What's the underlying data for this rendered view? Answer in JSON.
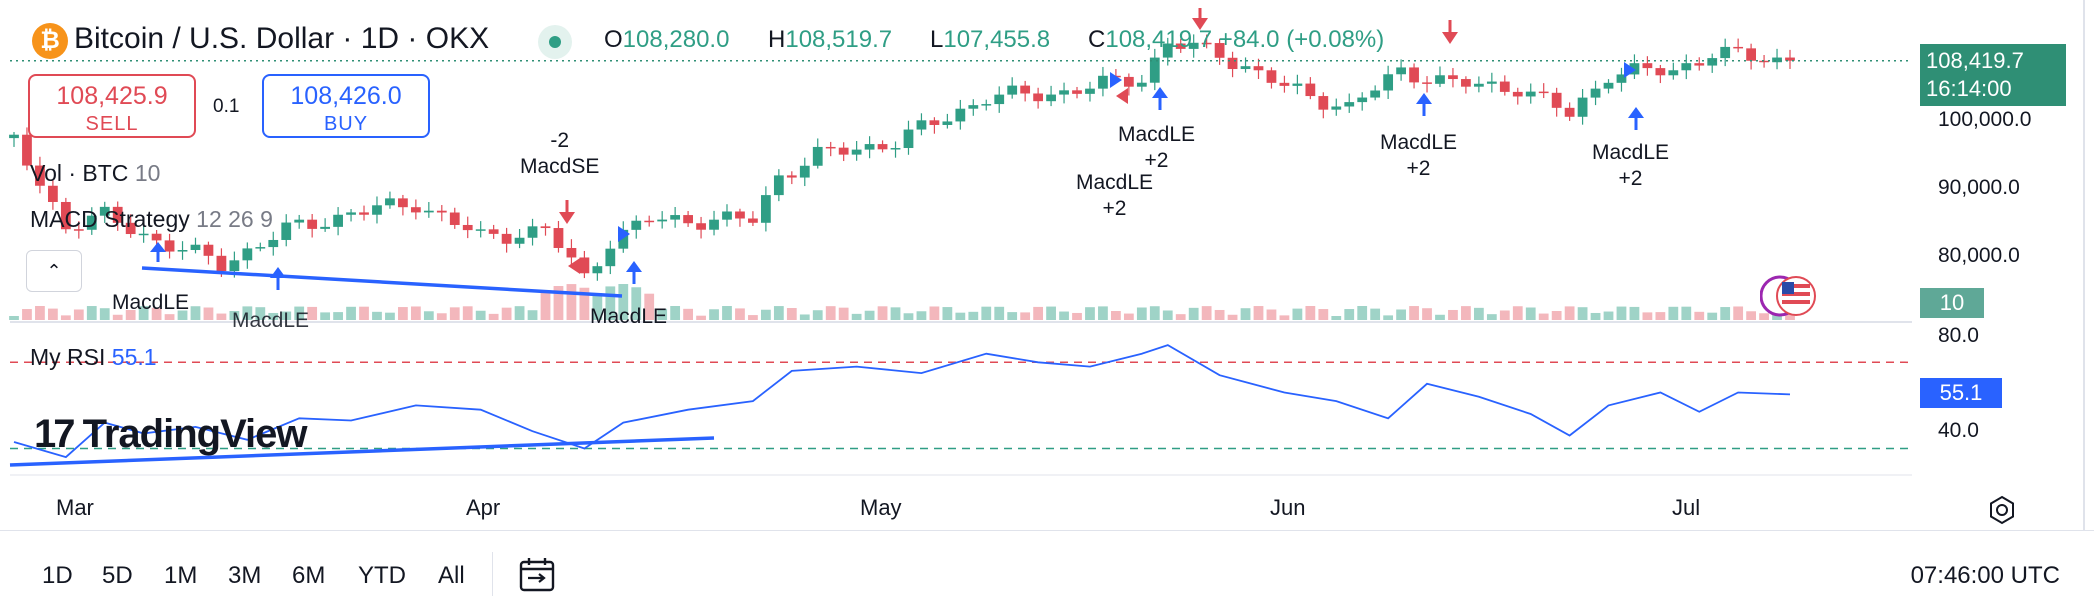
{
  "header": {
    "title": "Bitcoin / U.S. Dollar · 1D · OKX",
    "ohlc": [
      {
        "key": "O",
        "value": "108,280.0"
      },
      {
        "key": "H",
        "value": "108,519.7"
      },
      {
        "key": "L",
        "value": "107,455.8"
      },
      {
        "key": "C",
        "value": "108,419.7"
      }
    ],
    "change": "+84.0 (+0.08%)"
  },
  "trade": {
    "sell_price": "108,425.9",
    "sell_label": "SELL",
    "spread": "0.1",
    "buy_price": "108,426.0",
    "buy_label": "BUY"
  },
  "indicators": {
    "vol_name": "Vol · BTC",
    "vol_value": "10",
    "macd_name": "MACD Strategy",
    "macd_params": "12 26 9",
    "rsi_name": "My RSI",
    "rsi_value": "55.1"
  },
  "price_axis": {
    "ticks": [
      "100,000.0",
      "90,000.0",
      "80,000.0"
    ],
    "current_price": "108,419.7",
    "countdown": "16:14:00",
    "volume_tag": "10",
    "rsi_ticks": [
      "80.0",
      "40.0"
    ],
    "rsi_tag": "55.1"
  },
  "time_axis": {
    "months": [
      "Mar",
      "Apr",
      "May",
      "Jun",
      "Jul"
    ]
  },
  "signals": [
    {
      "text": "MacdLE"
    },
    {
      "text": "MacdLE"
    },
    {
      "text": "MacdLE"
    },
    {
      "text": "-2\nMacdSE"
    },
    {
      "text": "MacdLE\n+2"
    },
    {
      "text": "MacdLE\n+2"
    },
    {
      "text": "MacdLE\n+2"
    },
    {
      "text": "MacdLE\n+2"
    }
  ],
  "watermark": "TradingView",
  "toolbar": {
    "timeframes": [
      "1D",
      "5D",
      "1M",
      "3M",
      "6M",
      "YTD",
      "All"
    ],
    "clock": "07:46:00 UTC"
  },
  "icons": {
    "coin": "bitcoin-icon",
    "collapse": "chevron-up-icon",
    "compare": "calendar-range-icon",
    "settings": "settings-hex-icon",
    "flag": "us-flag-icon"
  },
  "colors": {
    "up": "#2f9e85",
    "down": "#e04a55",
    "accent": "#2962ff",
    "rsi_upper": "#e04a55",
    "rsi_lower": "#2f9e85"
  },
  "chart_data": [
    {
      "type": "candlestick",
      "title": "Bitcoin / U.S. Dollar · 1D · OKX",
      "x_range": [
        "2025-02-22",
        "2025-07-09"
      ],
      "ylim": [
        72000,
        112000
      ],
      "y_ticks": [
        80000,
        90000,
        100000
      ],
      "last": {
        "o": 108280.0,
        "h": 108519.7,
        "l": 107455.8,
        "c": 108419.7
      },
      "anchors": [
        {
          "date": "2025-02-22",
          "close": 96500
        },
        {
          "date": "2025-02-26",
          "close": 84200
        },
        {
          "date": "2025-03-01",
          "close": 85500
        },
        {
          "date": "2025-03-05",
          "close": 82000
        },
        {
          "date": "2025-03-10",
          "close": 78500
        },
        {
          "date": "2025-03-15",
          "close": 83500
        },
        {
          "date": "2025-03-20",
          "close": 86000
        },
        {
          "date": "2025-03-25",
          "close": 87500
        },
        {
          "date": "2025-03-30",
          "close": 82500
        },
        {
          "date": "2025-04-04",
          "close": 83500
        },
        {
          "date": "2025-04-07",
          "close": 76500
        },
        {
          "date": "2025-04-09",
          "close": 82000
        },
        {
          "date": "2025-04-12",
          "close": 85000
        },
        {
          "date": "2025-04-20",
          "close": 85000
        },
        {
          "date": "2025-04-22",
          "close": 91500
        },
        {
          "date": "2025-04-25",
          "close": 94500
        },
        {
          "date": "2025-05-01",
          "close": 96500
        },
        {
          "date": "2025-05-08",
          "close": 103000
        },
        {
          "date": "2025-05-14",
          "close": 103800
        },
        {
          "date": "2025-05-20",
          "close": 106000
        },
        {
          "date": "2025-05-22",
          "close": 111000
        },
        {
          "date": "2025-05-26",
          "close": 109500
        },
        {
          "date": "2025-05-31",
          "close": 104500
        },
        {
          "date": "2025-06-05",
          "close": 101500
        },
        {
          "date": "2025-06-09",
          "close": 107000
        },
        {
          "date": "2025-06-13",
          "close": 105000
        },
        {
          "date": "2025-06-18",
          "close": 104500
        },
        {
          "date": "2025-06-22",
          "close": 100500
        },
        {
          "date": "2025-06-25",
          "close": 106500
        },
        {
          "date": "2025-06-30",
          "close": 107000
        },
        {
          "date": "2025-07-03",
          "close": 109500
        },
        {
          "date": "2025-07-09",
          "close": 108420
        }
      ],
      "volume_label": "Vol · BTC",
      "volume_last": 10
    },
    {
      "type": "line",
      "title": "My RSI",
      "ylim": [
        20,
        90
      ],
      "y_ticks": [
        40,
        80
      ],
      "bands": [
        70,
        30
      ],
      "last": 55.1,
      "series": [
        {
          "name": "My RSI",
          "x": [
            "2025-02-22",
            "2025-02-26",
            "2025-03-01",
            "2025-03-04",
            "2025-03-08",
            "2025-03-12",
            "2025-03-16",
            "2025-03-20",
            "2025-03-25",
            "2025-03-30",
            "2025-04-03",
            "2025-04-07",
            "2025-04-10",
            "2025-04-15",
            "2025-04-20",
            "2025-04-23",
            "2025-04-28",
            "2025-05-03",
            "2025-05-08",
            "2025-05-12",
            "2025-05-16",
            "2025-05-20",
            "2025-05-22",
            "2025-05-26",
            "2025-05-31",
            "2025-06-04",
            "2025-06-08",
            "2025-06-11",
            "2025-06-15",
            "2025-06-19",
            "2025-06-22",
            "2025-06-25",
            "2025-06-29",
            "2025-07-02",
            "2025-07-05",
            "2025-07-09"
          ],
          "values": [
            33,
            26,
            42,
            37,
            40,
            34,
            44,
            43,
            50,
            48,
            38,
            30,
            42,
            48,
            52,
            66,
            68,
            65,
            74,
            70,
            68,
            74,
            78,
            64,
            56,
            52,
            44,
            60,
            54,
            46,
            36,
            50,
            56,
            47,
            56,
            55.1
          ]
        }
      ]
    }
  ]
}
